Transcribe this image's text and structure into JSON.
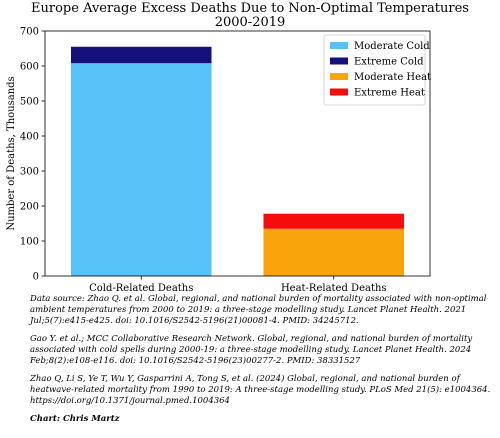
{
  "title_line1": "Europe Average Excess Deaths Due to Non-Optimal Temperatures",
  "title_line2": "2000-2019",
  "chart_data": {
    "type": "bar",
    "stacked": true,
    "categories": [
      "Cold-Related Deaths",
      "Heat-Related Deaths"
    ],
    "series": [
      {
        "name": "Moderate Cold",
        "color": "#56c2f7",
        "values": [
          608,
          0
        ]
      },
      {
        "name": "Extreme Cold",
        "color": "#14117a",
        "values": [
          47,
          0
        ]
      },
      {
        "name": "Moderate Heat",
        "color": "#f9a40a",
        "values": [
          0,
          135
        ]
      },
      {
        "name": "Extreme Heat",
        "color": "#f50d0d",
        "values": [
          0,
          43
        ]
      }
    ],
    "ylabel": "Number of Deaths, Thousands",
    "ylim": [
      0,
      700
    ],
    "yticks": [
      "0",
      "100",
      "200",
      "300",
      "400",
      "500",
      "600",
      "700"
    ],
    "legend": "top-right",
    "grid": false
  },
  "notes": [
    "Data source: Zhao Q. et al. Global, regional, and national burden of mortality associated with non-optimal ambient temperatures from 2000 to 2019: a three-stage modelling study. Lancet Planet Health. 2021 Jul;5(7):e415-e425. doi: 10.1016/S2542-5196(21)00081-4. PMID: 34245712.",
    "Gao Y. et al.; MCC Collaborative Research Network. Global, regional, and national burden of mortality associated with cold spells during 2000-19: a three-stage modelling study. Lancet Planet Health. 2024 Feb;8(2):e108-e116. doi: 10.1016/S2542-5196(23)00277-2. PMID: 38331527",
    "Zhao Q, Li S, Ye T, Wu Y, Gasparrini A, Tong S, et al. (2024) Global, regional, and national burden of heatwave-related mortality from 1990 to 2019: A three-stage modelling study. PLoS Med 21(5): e1004364. https://doi.org/10.1371/journal.pmed.1004364"
  ],
  "credit": "Chart: Chris Martz"
}
